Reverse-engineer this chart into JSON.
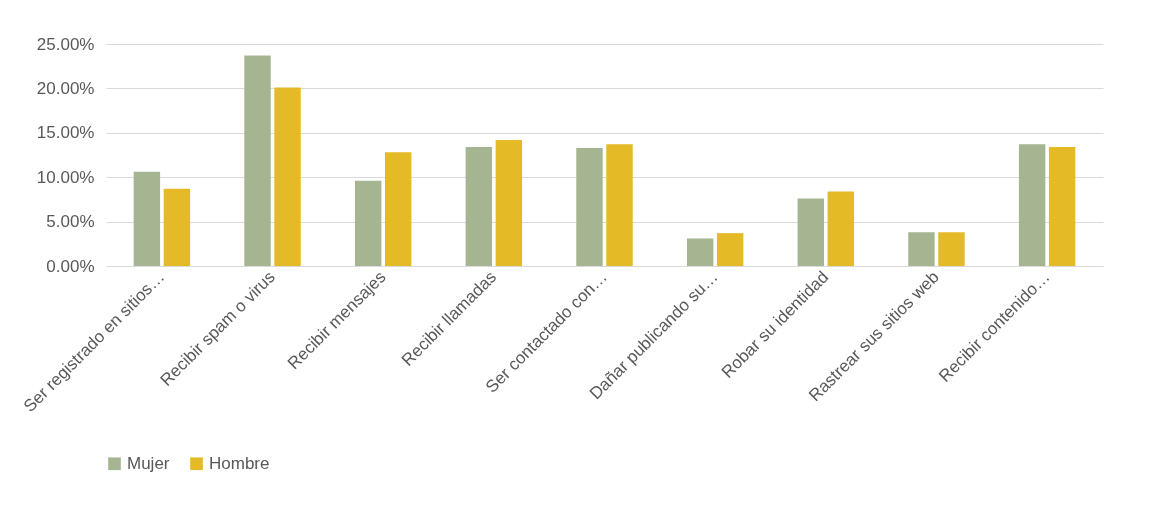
{
  "chart_data": {
    "type": "bar",
    "categories": [
      "Ser registrado en sitios…",
      "Recibir spam o virus",
      "Recibir mensajes",
      "Recibir llamadas",
      "Ser contactado con…",
      "Dañar publicando su…",
      "Robar su identidad",
      "Rastrear sus sitios web",
      "Recibir contenido…"
    ],
    "series": [
      {
        "name": "Mujer",
        "color": "#a5b592",
        "values": [
          10.6,
          23.7,
          9.6,
          13.4,
          13.3,
          3.1,
          7.6,
          3.8,
          13.7
        ]
      },
      {
        "name": "Hombre",
        "color": "#e5ba27",
        "values": [
          8.7,
          20.1,
          12.8,
          14.2,
          13.7,
          3.7,
          8.4,
          3.8,
          13.4
        ]
      }
    ],
    "ylim": [
      0,
      25
    ],
    "yticks": [
      {
        "value": 0,
        "label": "0.00%"
      },
      {
        "value": 5,
        "label": "5.00%"
      },
      {
        "value": 10,
        "label": "10.00%"
      },
      {
        "value": 15,
        "label": "15.00%"
      },
      {
        "value": 20,
        "label": "20.00%"
      },
      {
        "value": 25,
        "label": "25.00%"
      }
    ],
    "grid": "y",
    "legend": "bottom"
  }
}
